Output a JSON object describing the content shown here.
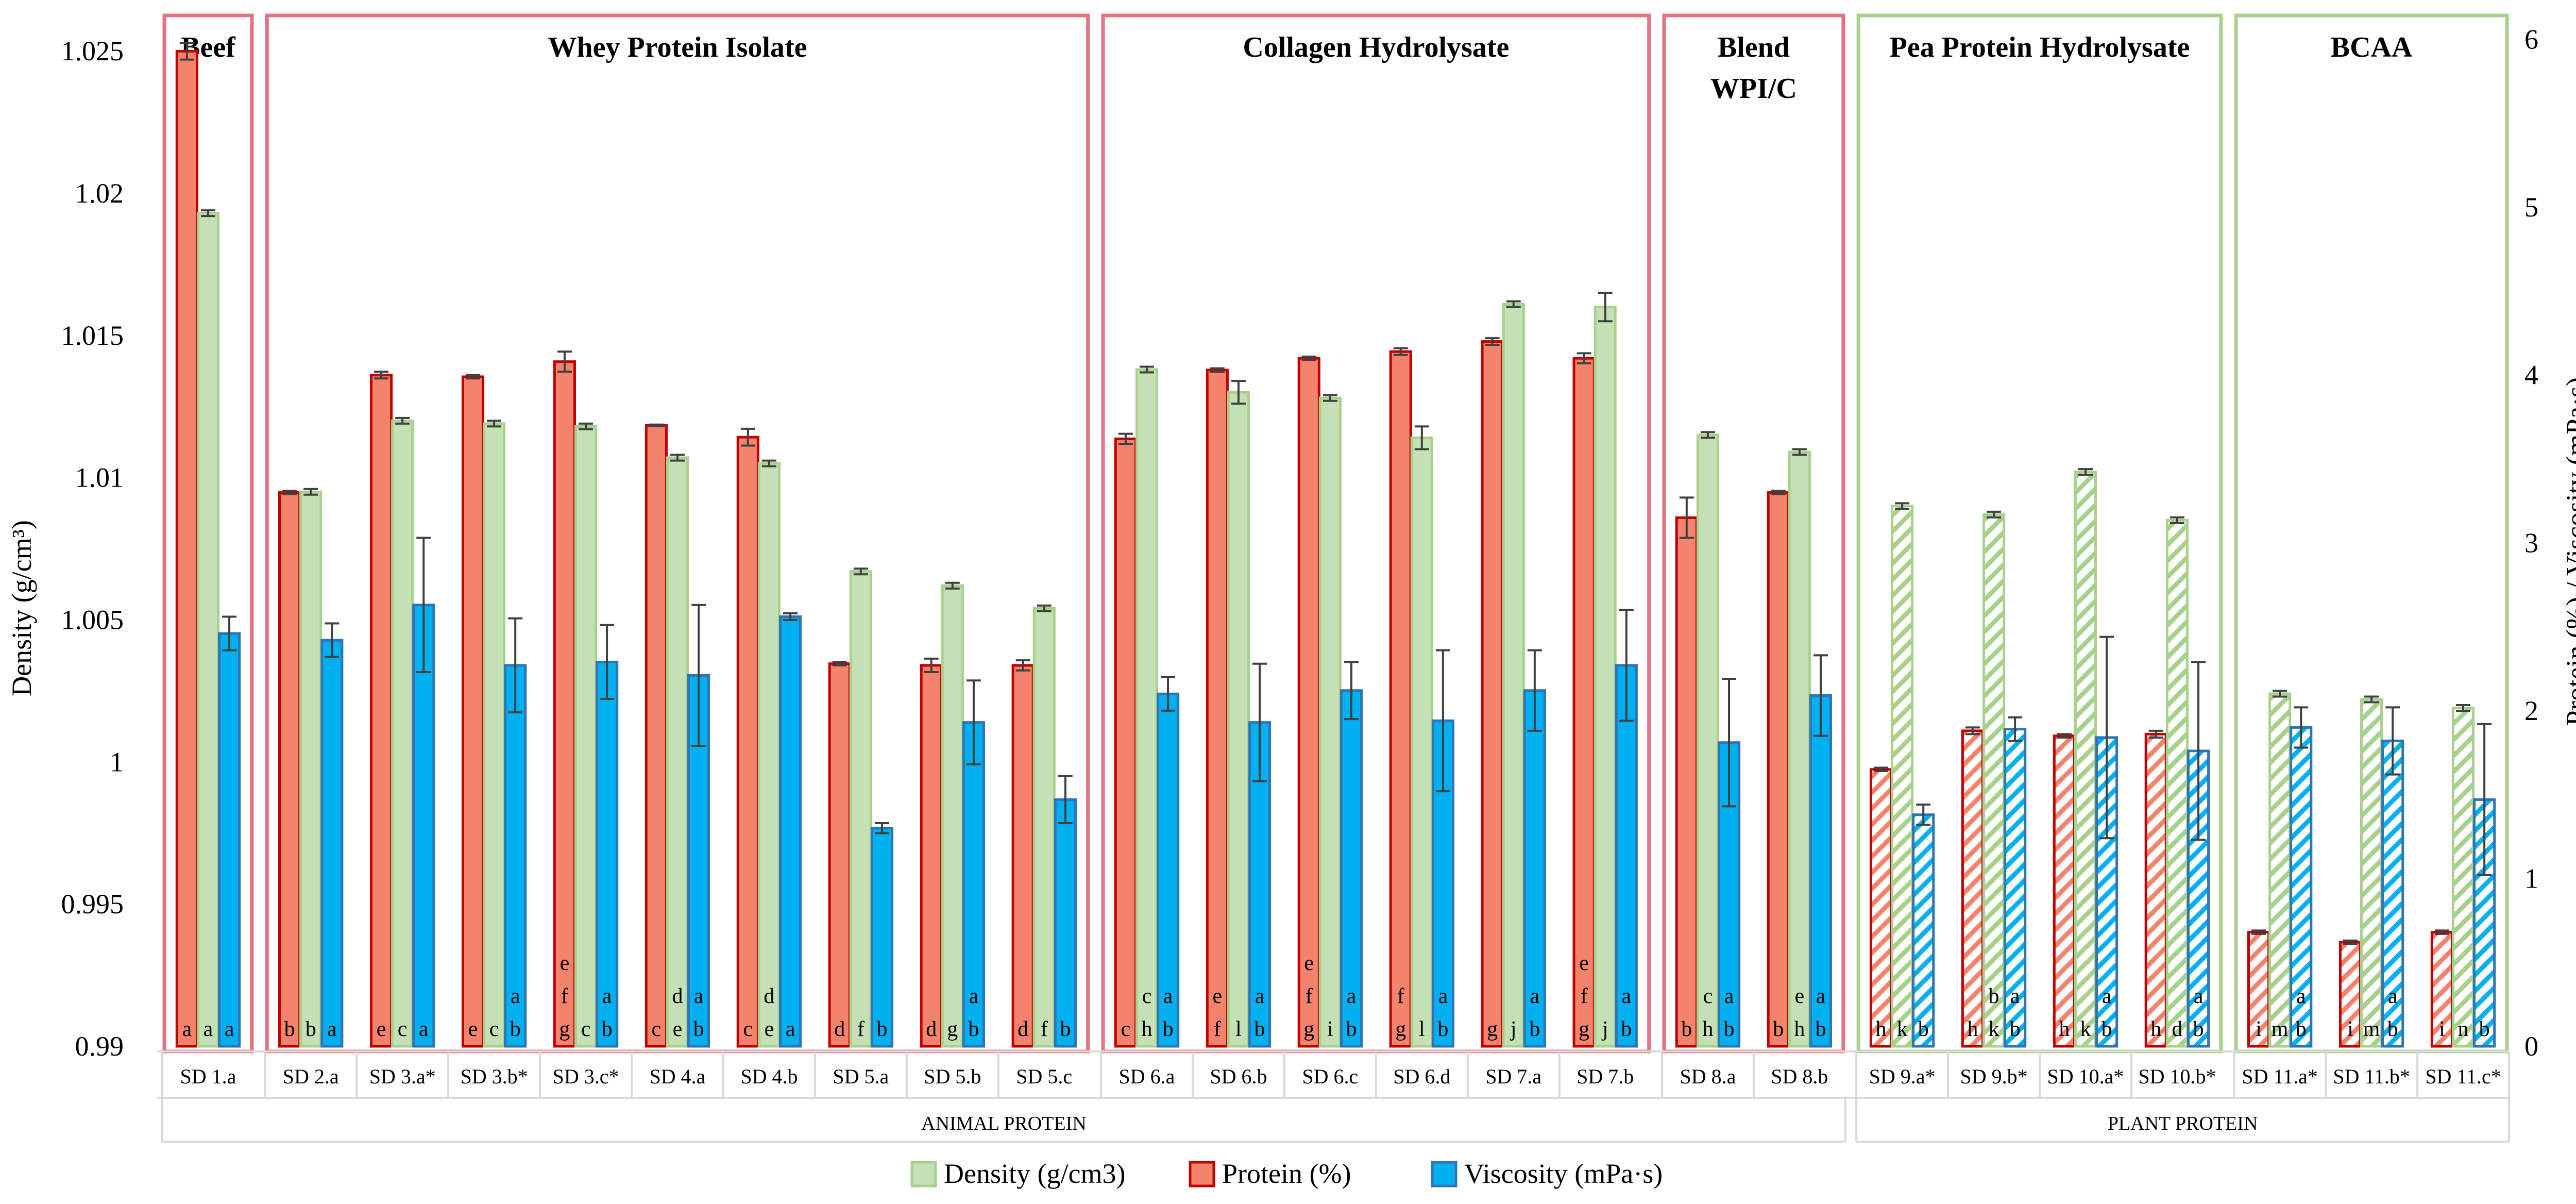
{
  "chart_data": {
    "type": "bar",
    "left_axis": {
      "label": "Density (g/cm³)",
      "min": 0.99,
      "max": 1.026,
      "ticks": [
        0.99,
        0.995,
        1.0,
        1.005,
        1.01,
        1.015,
        1.02,
        1.025
      ],
      "tick_labels": [
        "0.99",
        "0.995",
        "1",
        "1.005",
        "1.01",
        "1.015",
        "1.02",
        "1.025"
      ]
    },
    "right_axis": {
      "label": "Protein (%) / Viscosity (mPa·s)",
      "min": 0,
      "max": 6.1,
      "ticks": [
        0,
        1,
        2,
        3,
        4,
        5,
        6
      ],
      "tick_labels": [
        "0",
        "1",
        "2",
        "3",
        "4",
        "5",
        "6"
      ]
    },
    "legend": [
      {
        "key": "density",
        "label": "Density (g/cm3)",
        "color": "#c5e0b4",
        "border": "#a9d18e"
      },
      {
        "key": "protein",
        "label": "Protein (%)",
        "color": "#f4836e",
        "border": "#c00000"
      },
      {
        "key": "viscosity",
        "label": "Viscosity (mPa·s)",
        "color": "#00b0f0",
        "border": "#2e75b6"
      }
    ],
    "colors": {
      "animal_box": "#e3737f",
      "plant_box": "#a9d18e",
      "protein_fill": "#f4836e",
      "protein_edge": "#c00000",
      "density_fill": "#c5e0b4",
      "density_edge": "#a9d18e",
      "viscosity_fill": "#00b0f0",
      "viscosity_edge": "#2e75b6",
      "error_bar": "#404040"
    },
    "groups": [
      {
        "label": "Beef",
        "lines": [
          "Beef"
        ],
        "type": "animal",
        "samples": [
          0
        ]
      },
      {
        "label": "Whey Protein Isolate",
        "lines": [
          "Whey Protein Isolate"
        ],
        "type": "animal",
        "samples": [
          1,
          2,
          3,
          4,
          5,
          6,
          7,
          8,
          9
        ]
      },
      {
        "label": "Collagen Hydrolysate",
        "lines": [
          "Collagen Hydrolysate"
        ],
        "type": "animal",
        "samples": [
          10,
          11,
          12,
          13,
          14,
          15
        ]
      },
      {
        "label": "Blend WPI/C",
        "lines": [
          "Blend",
          "WPI/C"
        ],
        "type": "animal",
        "samples": [
          16,
          17
        ]
      },
      {
        "label": "Pea Protein Hydrolysate",
        "lines": [
          "Pea Protein Hydrolysate"
        ],
        "type": "plant",
        "samples": [
          18,
          19,
          20,
          21
        ]
      },
      {
        "label": "BCAA",
        "lines": [
          "BCAA"
        ],
        "type": "plant",
        "samples": [
          22,
          23,
          24
        ]
      }
    ],
    "categories_footer": [
      {
        "label": "ANIMAL PROTEIN",
        "samples": [
          0,
          17
        ]
      },
      {
        "label": "PLANT PROTEIN",
        "samples": [
          18,
          24
        ]
      }
    ],
    "samples": [
      {
        "name": "SD 1.a",
        "protein": 5.93,
        "protein_err": 0.05,
        "density": 1.0193,
        "density_err": 0.0001,
        "viscosity": 2.46,
        "viscosity_err": 0.1,
        "letters": {
          "protein": [
            "a"
          ],
          "density": [
            "a"
          ],
          "viscosity": [
            "a"
          ]
        }
      },
      {
        "name": "SD 2.a",
        "protein": 3.3,
        "protein_err": 0.01,
        "density": 1.0095,
        "density_err": 0.0001,
        "viscosity": 2.42,
        "viscosity_err": 0.1,
        "letters": {
          "protein": [
            "b"
          ],
          "density": [
            "b"
          ],
          "viscosity": [
            "a"
          ]
        }
      },
      {
        "name": "SD 3.a*",
        "protein": 4.0,
        "protein_err": 0.02,
        "density": 1.012,
        "density_err": 0.0001,
        "viscosity": 2.63,
        "viscosity_err": 0.4,
        "letters": {
          "protein": [
            "e"
          ],
          "density": [
            "c"
          ],
          "viscosity": [
            "a"
          ]
        }
      },
      {
        "name": "SD 3.b*",
        "protein": 3.99,
        "protein_err": 0.01,
        "density": 1.0119,
        "density_err": 0.0001,
        "viscosity": 2.27,
        "viscosity_err": 0.28,
        "letters": {
          "protein": [
            "e"
          ],
          "density": [
            "c"
          ],
          "viscosity": [
            "a",
            "b"
          ]
        }
      },
      {
        "name": "SD 3.c*",
        "protein": 4.08,
        "protein_err": 0.06,
        "density": 1.0118,
        "density_err": 0.0001,
        "viscosity": 2.29,
        "viscosity_err": 0.22,
        "letters": {
          "protein": [
            "e",
            "f",
            "g"
          ],
          "density": [
            "c"
          ],
          "viscosity": [
            "a",
            "b"
          ]
        }
      },
      {
        "name": "SD 4.a",
        "protein": 3.7,
        "protein_err": 0.005,
        "density": 1.0107,
        "density_err": 0.0001,
        "viscosity": 2.21,
        "viscosity_err": 0.42,
        "letters": {
          "protein": [
            "c"
          ],
          "density": [
            "d",
            "e"
          ],
          "viscosity": [
            "a",
            "b"
          ]
        }
      },
      {
        "name": "SD 4.b",
        "protein": 3.63,
        "protein_err": 0.05,
        "density": 1.0105,
        "density_err": 0.0001,
        "viscosity": 2.56,
        "viscosity_err": 0.02,
        "letters": {
          "protein": [
            "c"
          ],
          "density": [
            "d",
            "e"
          ],
          "viscosity": [
            "a"
          ]
        }
      },
      {
        "name": "SD 5.a",
        "protein": 2.28,
        "protein_err": 0.01,
        "density": 1.0067,
        "density_err": 0.0001,
        "viscosity": 1.3,
        "viscosity_err": 0.03,
        "letters": {
          "protein": [
            "d"
          ],
          "density": [
            "f"
          ],
          "viscosity": [
            "b"
          ]
        }
      },
      {
        "name": "SD 5.b",
        "protein": 2.27,
        "protein_err": 0.04,
        "density": 1.0062,
        "density_err": 0.0001,
        "viscosity": 1.93,
        "viscosity_err": 0.25,
        "letters": {
          "protein": [
            "d"
          ],
          "density": [
            "g"
          ],
          "viscosity": [
            "a",
            "b"
          ]
        }
      },
      {
        "name": "SD 5.c",
        "protein": 2.27,
        "protein_err": 0.03,
        "density": 1.0054,
        "density_err": 0.0001,
        "viscosity": 1.47,
        "viscosity_err": 0.14,
        "letters": {
          "protein": [
            "d"
          ],
          "density": [
            "f"
          ],
          "viscosity": [
            "b"
          ]
        }
      },
      {
        "name": "SD 6.a",
        "protein": 3.62,
        "protein_err": 0.03,
        "density": 1.0138,
        "density_err": 0.0001,
        "viscosity": 2.1,
        "viscosity_err": 0.1,
        "letters": {
          "protein": [
            "c"
          ],
          "density": [
            "c",
            "h"
          ],
          "viscosity": [
            "a",
            "b"
          ]
        }
      },
      {
        "name": "SD 6.b",
        "protein": 4.03,
        "protein_err": 0.01,
        "density": 1.013,
        "density_err": 0.0004,
        "viscosity": 1.93,
        "viscosity_err": 0.35,
        "letters": {
          "protein": [
            "e",
            "f"
          ],
          "density": [
            "l"
          ],
          "viscosity": [
            "a",
            "b"
          ]
        }
      },
      {
        "name": "SD 6.c",
        "protein": 4.1,
        "protein_err": 0.01,
        "density": 1.0128,
        "density_err": 0.0001,
        "viscosity": 2.12,
        "viscosity_err": 0.17,
        "letters": {
          "protein": [
            "e",
            "f",
            "g"
          ],
          "density": [
            "i"
          ],
          "viscosity": [
            "a",
            "b"
          ]
        }
      },
      {
        "name": "SD 6.d",
        "protein": 4.14,
        "protein_err": 0.02,
        "density": 1.0114,
        "density_err": 0.0004,
        "viscosity": 1.94,
        "viscosity_err": 0.42,
        "letters": {
          "protein": [
            "f",
            "g"
          ],
          "density": [
            "l"
          ],
          "viscosity": [
            "a",
            "b"
          ]
        }
      },
      {
        "name": "SD 7.a",
        "protein": 4.2,
        "protein_err": 0.02,
        "density": 1.0161,
        "density_err": 0.0001,
        "viscosity": 2.12,
        "viscosity_err": 0.24,
        "letters": {
          "protein": [
            "g"
          ],
          "density": [
            "j"
          ],
          "viscosity": [
            "a",
            "b"
          ]
        }
      },
      {
        "name": "SD 7.b",
        "protein": 4.1,
        "protein_err": 0.03,
        "density": 1.016,
        "density_err": 0.0005,
        "viscosity": 2.27,
        "viscosity_err": 0.33,
        "letters": {
          "protein": [
            "e",
            "f",
            "g"
          ],
          "density": [
            "j"
          ],
          "viscosity": [
            "a",
            "b"
          ]
        }
      },
      {
        "name": "SD 8.a",
        "protein": 3.15,
        "protein_err": 0.12,
        "density": 1.0115,
        "density_err": 0.0001,
        "viscosity": 1.81,
        "viscosity_err": 0.38,
        "letters": {
          "protein": [
            "b"
          ],
          "density": [
            "c",
            "h"
          ],
          "viscosity": [
            "a",
            "b"
          ]
        }
      },
      {
        "name": "SD 8.b",
        "protein": 3.3,
        "protein_err": 0.01,
        "density": 1.0109,
        "density_err": 0.0001,
        "viscosity": 2.09,
        "viscosity_err": 0.24,
        "letters": {
          "protein": [
            "b"
          ],
          "density": [
            "e",
            "h"
          ],
          "viscosity": [
            "a",
            "b"
          ]
        }
      },
      {
        "name": "SD 9.a*",
        "protein": 1.65,
        "protein_err": 0.01,
        "density": 1.009,
        "density_err": 0.0001,
        "viscosity": 1.38,
        "viscosity_err": 0.06,
        "letters": {
          "protein": [
            "h"
          ],
          "density": [
            "k"
          ],
          "viscosity": [
            "b"
          ]
        }
      },
      {
        "name": "SD 9.b*",
        "protein": 1.88,
        "protein_err": 0.02,
        "density": 1.0087,
        "density_err": 0.0001,
        "viscosity": 1.89,
        "viscosity_err": 0.07,
        "letters": {
          "protein": [
            "h"
          ],
          "density": [
            "b",
            "k"
          ],
          "viscosity": [
            "a",
            "b"
          ]
        }
      },
      {
        "name": "SD 10.a*",
        "protein": 1.85,
        "protein_err": 0.01,
        "density": 1.0102,
        "density_err": 0.0001,
        "viscosity": 1.84,
        "viscosity_err": 0.6,
        "letters": {
          "protein": [
            "h"
          ],
          "density": [
            "k"
          ],
          "viscosity": [
            "a",
            "b"
          ]
        }
      },
      {
        "name": "SD 10.b*",
        "protein": 1.86,
        "protein_err": 0.02,
        "density": 1.0085,
        "density_err": 0.0001,
        "viscosity": 1.76,
        "viscosity_err": 0.53,
        "letters": {
          "protein": [
            "h"
          ],
          "density": [
            "d"
          ],
          "viscosity": [
            "a",
            "b"
          ]
        }
      },
      {
        "name": "SD 11.a*",
        "protein": 0.68,
        "protein_err": 0.01,
        "density": 1.0024,
        "density_err": 0.0001,
        "viscosity": 1.9,
        "viscosity_err": 0.12,
        "letters": {
          "protein": [
            "i"
          ],
          "density": [
            "m"
          ],
          "viscosity": [
            "a",
            "b"
          ]
        }
      },
      {
        "name": "SD 11.b*",
        "protein": 0.62,
        "protein_err": 0.01,
        "density": 1.0022,
        "density_err": 0.0001,
        "viscosity": 1.82,
        "viscosity_err": 0.2,
        "letters": {
          "protein": [
            "i"
          ],
          "density": [
            "m"
          ],
          "viscosity": [
            "a",
            "b"
          ]
        }
      },
      {
        "name": "SD 11.c*",
        "protein": 0.68,
        "protein_err": 0.01,
        "density": 1.0019,
        "density_err": 0.0001,
        "viscosity": 1.47,
        "viscosity_err": 0.45,
        "letters": {
          "protein": [
            "i"
          ],
          "density": [
            "n"
          ],
          "viscosity": [
            "b"
          ]
        }
      }
    ],
    "plant_samples_hatched": true
  }
}
